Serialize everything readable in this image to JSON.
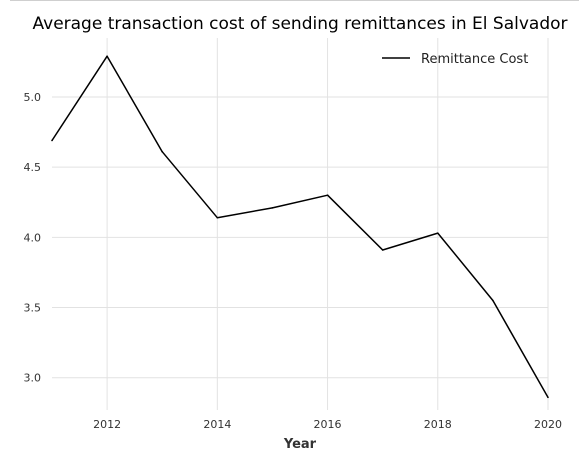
{
  "chart_data": {
    "type": "line",
    "title": "Average transaction cost of sending remittances in El Salvador",
    "xlabel": "Year",
    "ylabel": "",
    "xlim": [
      2011,
      2020
    ],
    "ylim": [
      2.77,
      5.42
    ],
    "x_ticks": [
      "2012",
      "2014",
      "2016",
      "2018",
      "2020"
    ],
    "y_ticks": [
      "3.0",
      "3.5",
      "4.0",
      "4.5",
      "5.0"
    ],
    "grid": true,
    "legend_position": "top-right",
    "series": [
      {
        "name": "Remittance Cost",
        "color": "#000000",
        "x": [
          2011,
          2012,
          2013,
          2014,
          2015,
          2016,
          2017,
          2018,
          2019,
          2020
        ],
        "values": [
          4.69,
          5.29,
          4.61,
          4.14,
          4.21,
          4.3,
          3.91,
          4.03,
          3.55,
          2.86
        ]
      }
    ]
  }
}
